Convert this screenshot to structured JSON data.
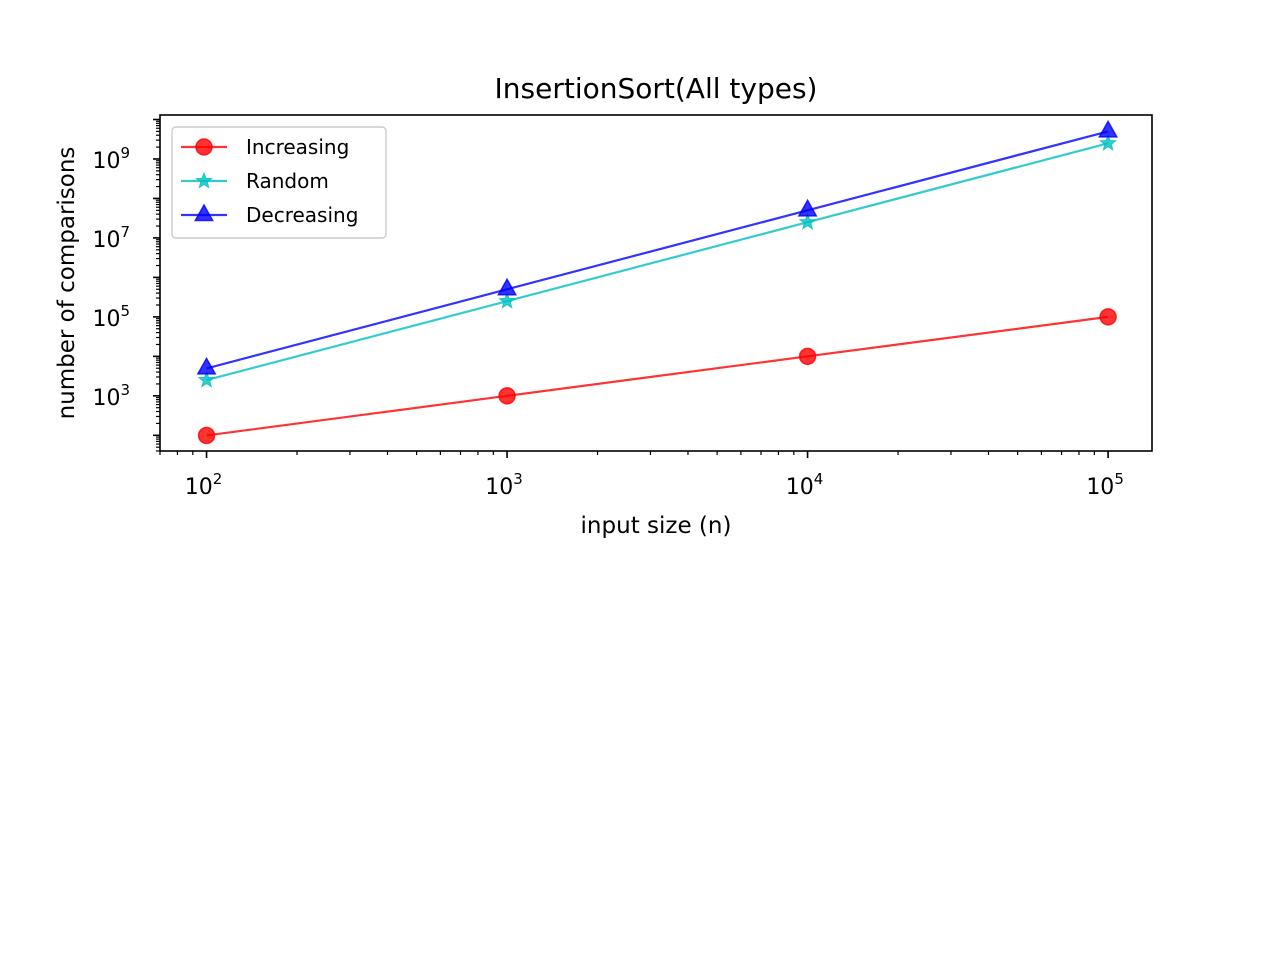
{
  "chart_data": {
    "type": "line",
    "title": "InsertionSort(All types)",
    "xlabel": "input size (n)",
    "ylabel": "number of comparisons",
    "xscale": "log",
    "yscale": "log",
    "xlim": [
      70,
      140000
    ],
    "ylim": [
      40,
      13000000000
    ],
    "x": [
      100,
      1000,
      10000,
      100000
    ],
    "x_ticks": [
      {
        "value": 100,
        "base": "10",
        "exp": "2"
      },
      {
        "value": 1000,
        "base": "10",
        "exp": "3"
      },
      {
        "value": 10000,
        "base": "10",
        "exp": "4"
      },
      {
        "value": 100000,
        "base": "10",
        "exp": "5"
      }
    ],
    "y_ticks": [
      {
        "value": 1000,
        "base": "10",
        "exp": "3"
      },
      {
        "value": 100000,
        "base": "10",
        "exp": "5"
      },
      {
        "value": 10000000,
        "base": "10",
        "exp": "7"
      },
      {
        "value": 1000000000,
        "base": "10",
        "exp": "9"
      }
    ],
    "grid": false,
    "legend_position": "top-left",
    "series": [
      {
        "name": "Increasing",
        "color": "#ff0000",
        "marker": "circle",
        "values": [
          99,
          999,
          9999,
          99999
        ]
      },
      {
        "name": "Random",
        "color": "#00bfbf",
        "marker": "star",
        "values": [
          2500,
          250000,
          25000000,
          2500000000
        ]
      },
      {
        "name": "Decreasing",
        "color": "#0000ff",
        "marker": "triangle",
        "values": [
          4950,
          499500,
          49995000,
          4999950000
        ]
      }
    ]
  }
}
